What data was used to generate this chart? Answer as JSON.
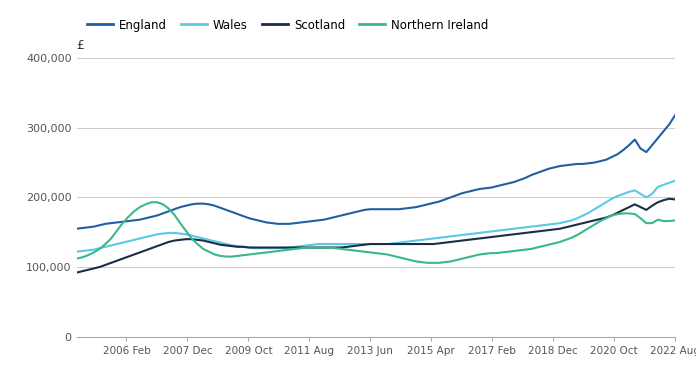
{
  "legend_labels": [
    "England",
    "Wales",
    "Scotland",
    "Northern Ireland"
  ],
  "line_colors": [
    "#2060a0",
    "#5bc8e8",
    "#1a2e4a",
    "#3ab88a"
  ],
  "ylabel": "£",
  "ylim": [
    0,
    400000
  ],
  "yticks": [
    0,
    100000,
    200000,
    300000,
    400000
  ],
  "xtick_labels": [
    "2006 Feb",
    "2007 Dec",
    "2009 Oct",
    "2011 Aug",
    "2013 Jun",
    "2015 Apr",
    "2017 Feb",
    "2018 Dec",
    "2020 Oct",
    "2022 Aug"
  ],
  "background_color": "#ffffff",
  "grid_color": "#cccccc",
  "england": [
    155000,
    156000,
    157000,
    158000,
    160000,
    162000,
    163000,
    164000,
    165000,
    166000,
    167000,
    168000,
    170000,
    172000,
    174000,
    177000,
    180000,
    183000,
    186000,
    188000,
    190000,
    191000,
    191000,
    190000,
    188000,
    185000,
    182000,
    179000,
    176000,
    173000,
    170000,
    168000,
    166000,
    164000,
    163000,
    162000,
    162000,
    162000,
    163000,
    164000,
    165000,
    166000,
    167000,
    168000,
    170000,
    172000,
    174000,
    176000,
    178000,
    180000,
    182000,
    183000,
    183000,
    183000,
    183000,
    183000,
    183000,
    184000,
    185000,
    186000,
    188000,
    190000,
    192000,
    194000,
    197000,
    200000,
    203000,
    206000,
    208000,
    210000,
    212000,
    213000,
    214000,
    216000,
    218000,
    220000,
    222000,
    225000,
    228000,
    232000,
    235000,
    238000,
    241000,
    243000,
    245000,
    246000,
    247000,
    248000,
    248000,
    249000,
    250000,
    252000,
    254000,
    258000,
    262000,
    268000,
    275000,
    283000,
    270000,
    265000,
    275000,
    285000,
    295000,
    305000,
    318000
  ],
  "wales": [
    122000,
    123000,
    124000,
    125000,
    127000,
    129000,
    131000,
    133000,
    135000,
    137000,
    139000,
    141000,
    143000,
    145000,
    147000,
    148000,
    149000,
    149000,
    148000,
    147000,
    145000,
    143000,
    141000,
    139000,
    137000,
    135000,
    133000,
    131000,
    130000,
    129000,
    128000,
    127000,
    127000,
    127000,
    127000,
    127000,
    127000,
    128000,
    129000,
    130000,
    131000,
    132000,
    133000,
    133000,
    133000,
    133000,
    133000,
    133000,
    133000,
    133000,
    133000,
    133000,
    133000,
    133000,
    133000,
    134000,
    135000,
    136000,
    137000,
    138000,
    139000,
    140000,
    141000,
    142000,
    143000,
    144000,
    145000,
    146000,
    147000,
    148000,
    149000,
    150000,
    151000,
    152000,
    153000,
    154000,
    155000,
    156000,
    157000,
    158000,
    159000,
    160000,
    161000,
    162000,
    163000,
    165000,
    167000,
    170000,
    174000,
    178000,
    183000,
    188000,
    193000,
    198000,
    202000,
    205000,
    208000,
    210000,
    205000,
    200000,
    205000,
    215000,
    218000,
    221000,
    224000
  ],
  "scotland": [
    92000,
    94000,
    96000,
    98000,
    100000,
    103000,
    106000,
    109000,
    112000,
    115000,
    118000,
    121000,
    124000,
    127000,
    130000,
    133000,
    136000,
    138000,
    139000,
    140000,
    140000,
    139000,
    138000,
    136000,
    134000,
    132000,
    131000,
    130000,
    129000,
    129000,
    128000,
    128000,
    128000,
    128000,
    128000,
    128000,
    128000,
    128000,
    128000,
    128000,
    128000,
    128000,
    128000,
    128000,
    128000,
    128000,
    128000,
    129000,
    130000,
    131000,
    132000,
    133000,
    133000,
    133000,
    133000,
    133000,
    133000,
    133000,
    133000,
    133000,
    133000,
    133000,
    133000,
    134000,
    135000,
    136000,
    137000,
    138000,
    139000,
    140000,
    141000,
    142000,
    143000,
    144000,
    145000,
    146000,
    147000,
    148000,
    149000,
    150000,
    151000,
    152000,
    153000,
    154000,
    155000,
    157000,
    159000,
    161000,
    163000,
    165000,
    167000,
    169000,
    171000,
    174000,
    178000,
    182000,
    186000,
    190000,
    186000,
    182000,
    188000,
    193000,
    196000,
    198000,
    197000
  ],
  "northern_ireland": [
    112000,
    114000,
    117000,
    121000,
    126000,
    133000,
    141000,
    152000,
    163000,
    172000,
    180000,
    186000,
    190000,
    193000,
    193000,
    190000,
    184000,
    175000,
    163000,
    152000,
    141000,
    133000,
    126000,
    122000,
    118000,
    116000,
    115000,
    115000,
    116000,
    117000,
    118000,
    119000,
    120000,
    121000,
    122000,
    123000,
    124000,
    125000,
    126000,
    127000,
    128000,
    128000,
    128000,
    128000,
    128000,
    127000,
    126000,
    125000,
    124000,
    123000,
    122000,
    121000,
    120000,
    119000,
    118000,
    116000,
    114000,
    112000,
    110000,
    108000,
    107000,
    106000,
    106000,
    106000,
    107000,
    108000,
    110000,
    112000,
    114000,
    116000,
    118000,
    119000,
    120000,
    120000,
    121000,
    122000,
    123000,
    124000,
    125000,
    126000,
    128000,
    130000,
    132000,
    134000,
    136000,
    139000,
    142000,
    146000,
    151000,
    156000,
    161000,
    166000,
    170000,
    174000,
    176000,
    177000,
    177000,
    176000,
    170000,
    163000,
    163000,
    168000,
    166000,
    166000,
    167000
  ],
  "n_points": 105
}
